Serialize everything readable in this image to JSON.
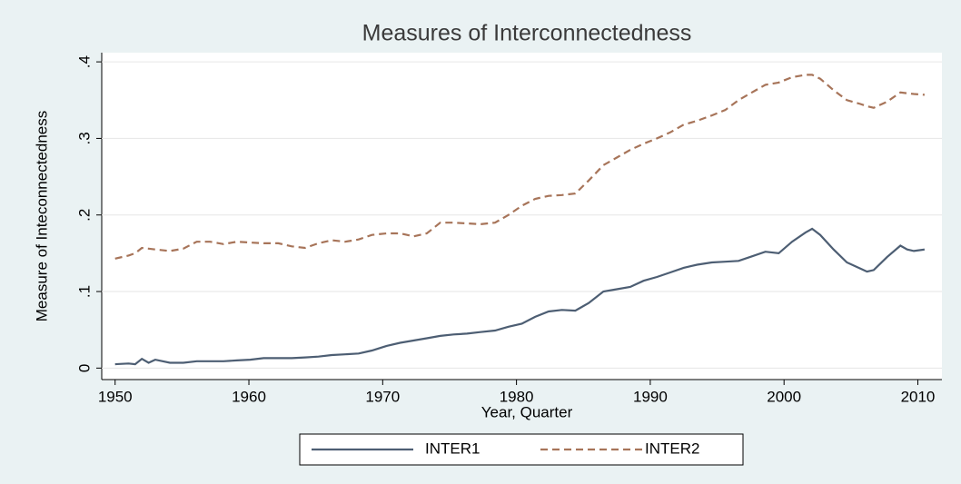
{
  "chart_data": {
    "type": "line",
    "title": "Measures of Interconnectedness",
    "xlabel": "Year, Quarter",
    "ylabel": "Measure of Inteconnectedness",
    "x": [
      1950,
      1951.0,
      1951.5,
      1952.0,
      1952.5,
      1953.0,
      1954.1,
      1955.1,
      1956.1,
      1957.1,
      1958.1,
      1959.1,
      1960.1,
      1961.1,
      1962.2,
      1963.2,
      1964.2,
      1965.2,
      1966.2,
      1967.2,
      1968.2,
      1969.2,
      1970.3,
      1971.3,
      1972.3,
      1973.3,
      1974.3,
      1975.3,
      1976.3,
      1977.3,
      1978.4,
      1979.4,
      1980.4,
      1981.4,
      1982.4,
      1983.4,
      1984.4,
      1985.4,
      1986.5,
      1987.5,
      1988.5,
      1989.5,
      1990.5,
      1991.5,
      1992.5,
      1993.5,
      1994.6,
      1995.6,
      1996.6,
      1997.6,
      1998.6,
      1999.6,
      2000.6,
      2001.6,
      2002.1,
      2002.7,
      2003.7,
      2004.7,
      2005.7,
      2006.2,
      2006.7,
      2007.7,
      2008.7,
      2009.2,
      2009.7,
      2010.5
    ],
    "series": [
      {
        "name": "INTER1",
        "color": "#4d5e73",
        "line_style": "solid",
        "values": [
          0.005,
          0.006,
          0.005,
          0.012,
          0.007,
          0.011,
          0.007,
          0.007,
          0.009,
          0.009,
          0.009,
          0.01,
          0.011,
          0.013,
          0.013,
          0.013,
          0.014,
          0.015,
          0.017,
          0.018,
          0.019,
          0.023,
          0.029,
          0.033,
          0.036,
          0.039,
          0.042,
          0.044,
          0.045,
          0.047,
          0.049,
          0.054,
          0.058,
          0.067,
          0.074,
          0.076,
          0.075,
          0.085,
          0.1,
          0.103,
          0.106,
          0.114,
          0.119,
          0.125,
          0.131,
          0.135,
          0.138,
          0.139,
          0.14,
          0.146,
          0.152,
          0.15,
          0.165,
          0.177,
          0.182,
          0.174,
          0.155,
          0.138,
          0.13,
          0.126,
          0.128,
          0.145,
          0.16,
          0.155,
          0.153,
          0.155
        ]
      },
      {
        "name": "INTER2",
        "color": "#a77459",
        "line_style": "dashed",
        "values": [
          0.143,
          0.147,
          0.15,
          0.157,
          0.156,
          0.155,
          0.153,
          0.156,
          0.165,
          0.165,
          0.162,
          0.165,
          0.164,
          0.163,
          0.163,
          0.159,
          0.157,
          0.163,
          0.167,
          0.165,
          0.168,
          0.174,
          0.176,
          0.176,
          0.172,
          0.176,
          0.19,
          0.19,
          0.189,
          0.188,
          0.19,
          0.2,
          0.212,
          0.221,
          0.225,
          0.226,
          0.228,
          0.245,
          0.265,
          0.275,
          0.285,
          0.293,
          0.3,
          0.308,
          0.318,
          0.323,
          0.33,
          0.337,
          0.35,
          0.36,
          0.37,
          0.373,
          0.38,
          0.383,
          0.383,
          0.378,
          0.363,
          0.35,
          0.345,
          0.342,
          0.34,
          0.348,
          0.36,
          0.359,
          0.358,
          0.357
        ]
      }
    ],
    "xlim": [
      1949,
      2011.8
    ],
    "xticks": [
      1950,
      1960,
      1970,
      1980,
      1990,
      2000,
      2010
    ],
    "ylim": [
      -0.015,
      0.412
    ],
    "yticks": [
      0,
      {
        "value": 0.1,
        "label": ".1"
      },
      {
        "value": 0.2,
        "label": ".2"
      },
      {
        "value": 0.3,
        "label": ".3"
      },
      {
        "value": 0.4,
        "label": ".4"
      }
    ],
    "grid": true,
    "legend_position": "bottom"
  }
}
